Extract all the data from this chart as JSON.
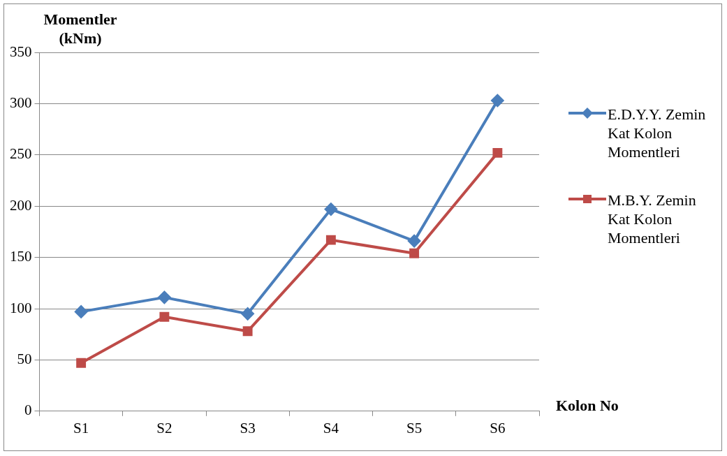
{
  "chart_data": {
    "type": "line",
    "ylabel": "Momentler (kNm)",
    "xlabel": "Kolon No",
    "categories": [
      "S1",
      "S2",
      "S3",
      "S4",
      "S5",
      "S6"
    ],
    "series": [
      {
        "name": "E.D.Y.Y. Zemin Kat Kolon Momentleri",
        "color": "#4a7ebb",
        "marker": "diamond",
        "values": [
          97,
          111,
          95,
          197,
          166,
          303
        ]
      },
      {
        "name": "M.B.Y. Zemin Kat Kolon Momentleri",
        "color": "#be4b48",
        "marker": "square",
        "values": [
          47,
          92,
          78,
          167,
          154,
          252
        ]
      }
    ],
    "ylim": [
      0,
      350
    ],
    "yticks": [
      0,
      50,
      100,
      150,
      200,
      250,
      300,
      350
    ],
    "grid": "y",
    "legend": "right",
    "line_style": "solid"
  }
}
